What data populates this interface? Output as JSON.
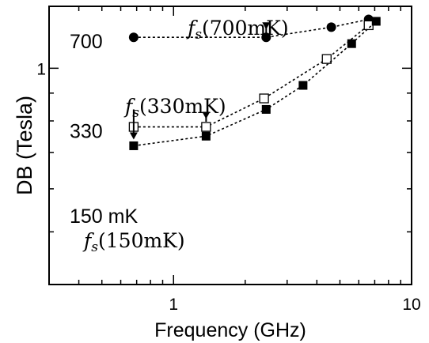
{
  "chart_data": {
    "type": "scatter",
    "title": "",
    "xlabel": "Frequency (GHz)",
    "ylabel": "DB (Tesla)",
    "xscale": "log",
    "yscale": "log",
    "xlim": [
      0.3,
      10
    ],
    "ylim": [
      0.4,
      1.3
    ],
    "grid": false,
    "x_ticks": [
      {
        "value": 1,
        "label": "1"
      },
      {
        "value": 10,
        "label": "10"
      }
    ],
    "y_ticks": [
      {
        "value": 1,
        "label": "1"
      }
    ],
    "series": [
      {
        "name": "700",
        "marker": "filled-circle",
        "color": "#000000",
        "line": "dotted",
        "points": [
          {
            "x": 0.68,
            "y": 1.14
          },
          {
            "x": 2.45,
            "y": 1.14
          },
          {
            "x": 4.6,
            "y": 1.19
          },
          {
            "x": 6.6,
            "y": 1.23
          }
        ]
      },
      {
        "name": "330",
        "marker": "open-square",
        "color": "#000000",
        "line": "dotted",
        "points": [
          {
            "x": 0.68,
            "y": 0.78
          },
          {
            "x": 1.37,
            "y": 0.78
          },
          {
            "x": 2.4,
            "y": 0.88
          },
          {
            "x": 4.4,
            "y": 1.04
          },
          {
            "x": 6.6,
            "y": 1.2
          }
        ]
      },
      {
        "name": "150 mK",
        "marker": "filled-square",
        "color": "#000000",
        "line": "dotted",
        "points": [
          {
            "x": 0.68,
            "y": 0.72
          },
          {
            "x": 1.37,
            "y": 0.75
          },
          {
            "x": 2.45,
            "y": 0.84
          },
          {
            "x": 3.5,
            "y": 0.93
          },
          {
            "x": 5.6,
            "y": 1.11
          },
          {
            "x": 7.1,
            "y": 1.22
          }
        ]
      }
    ],
    "annotations": [
      {
        "text": "f_s(700mK)",
        "target_series": 0,
        "target_point": 1
      },
      {
        "text": "f_s(330mK)",
        "target_series": 1,
        "target_point": 1
      },
      {
        "text": "f_s(150mK)",
        "target_series": 2,
        "target_point": 0
      }
    ]
  }
}
